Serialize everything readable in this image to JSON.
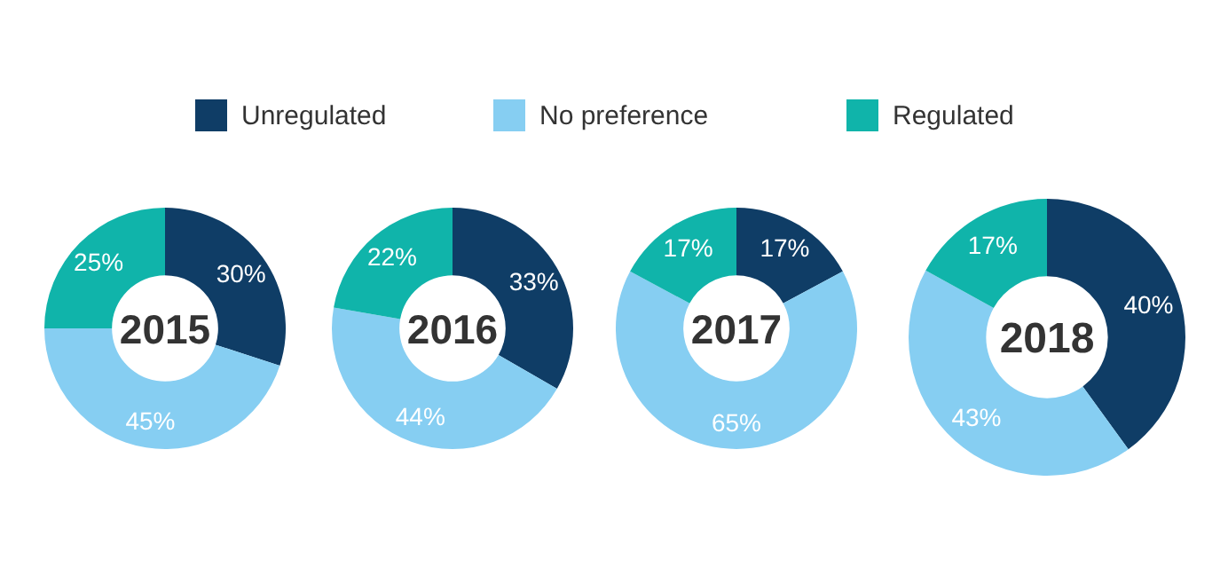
{
  "chart_data": [
    {
      "type": "donut",
      "title": "2015",
      "categories": [
        "Unregulated",
        "No preference",
        "Regulated"
      ],
      "values": [
        30,
        45,
        25
      ],
      "colors": [
        "#0f3d66",
        "#86cef2",
        "#10b4aa"
      ],
      "value_labels": [
        "30%",
        "45%",
        "25%"
      ],
      "legend": "top"
    },
    {
      "type": "donut",
      "title": "2016",
      "categories": [
        null,
        null,
        null
      ],
      "values": [
        33,
        44,
        22
      ],
      "colors": [
        "#0f3d66",
        "#86cef2",
        "#10b4aa"
      ],
      "value_labels": [
        "33%",
        "44%",
        "22%"
      ]
    },
    {
      "type": "donut",
      "title": "2017",
      "categories": [
        null,
        null,
        null
      ],
      "values": [
        17,
        65,
        17
      ],
      "colors": [
        "#0f3d66",
        "#86cef2",
        "#10b4aa"
      ],
      "value_labels": [
        "17%",
        "65%",
        "17%"
      ]
    },
    {
      "type": "donut",
      "title": "2018",
      "categories": [
        null,
        null,
        null
      ],
      "values": [
        40,
        43,
        17
      ],
      "colors": [
        "#0f3d66",
        "#86cef2",
        "#10b4aa"
      ],
      "value_labels": [
        "40%",
        "43%",
        "17%"
      ]
    }
  ]
}
